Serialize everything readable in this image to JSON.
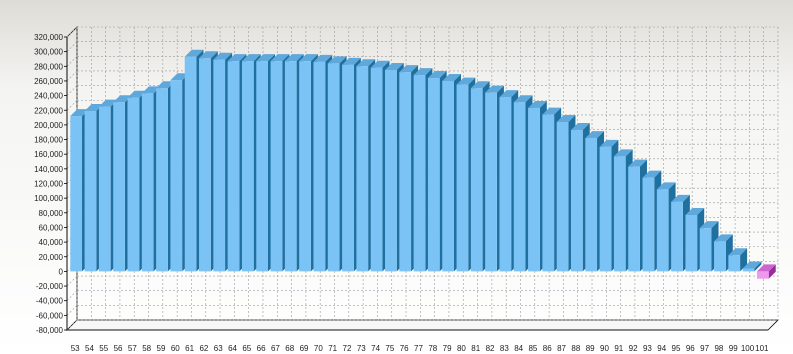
{
  "chart_data": {
    "type": "bar",
    "title": "",
    "xlabel": "",
    "ylabel": "",
    "ylim": [
      -80000,
      320000
    ],
    "yticks": [
      -80000,
      -60000,
      -40000,
      -20000,
      0,
      20000,
      40000,
      60000,
      80000,
      100000,
      120000,
      140000,
      160000,
      180000,
      200000,
      220000,
      240000,
      260000,
      280000,
      300000,
      320000
    ],
    "ytick_labels": [
      "-80,000",
      "-60,000",
      "-40,000",
      "-20,000",
      "0",
      "20,000",
      "40,000",
      "60,000",
      "80,000",
      "100,000",
      "120,000",
      "140,000",
      "160,000",
      "180,000",
      "200,000",
      "220,000",
      "240,000",
      "260,000",
      "280,000",
      "300,000",
      "320,000"
    ],
    "grid": true,
    "three_d": true,
    "categories": [
      "53",
      "54",
      "55",
      "56",
      "57",
      "58",
      "59",
      "60",
      "61",
      "62",
      "63",
      "64",
      "65",
      "66",
      "67",
      "68",
      "69",
      "70",
      "71",
      "72",
      "73",
      "74",
      "75",
      "76",
      "77",
      "78",
      "79",
      "80",
      "81",
      "82",
      "83",
      "84",
      "85",
      "86",
      "87",
      "88",
      "89",
      "90",
      "91",
      "92",
      "93",
      "94",
      "95",
      "96",
      "97",
      "98",
      "99",
      "100",
      "101"
    ],
    "values": [
      212000,
      219000,
      225000,
      231000,
      237000,
      243000,
      250000,
      261000,
      293000,
      291000,
      289000,
      287000,
      287000,
      287000,
      287000,
      287000,
      287000,
      286000,
      284000,
      282000,
      280000,
      278000,
      275000,
      272000,
      268000,
      264000,
      260000,
      255000,
      250000,
      244000,
      238000,
      231000,
      223000,
      214000,
      204000,
      193000,
      182000,
      170000,
      157000,
      143000,
      128000,
      112000,
      95000,
      77000,
      59000,
      41000,
      22000,
      4000,
      -10000
    ],
    "colors": {
      "positive": "#7cc3f5",
      "positive_top": "#5fa8dc",
      "positive_side": "#1f6f9f",
      "negative": "#ee99ee",
      "negative_top": "#cc66cc",
      "negative_side": "#9a2aa0",
      "background": "#e9e8e3",
      "grid": "#9a9a9a"
    }
  }
}
